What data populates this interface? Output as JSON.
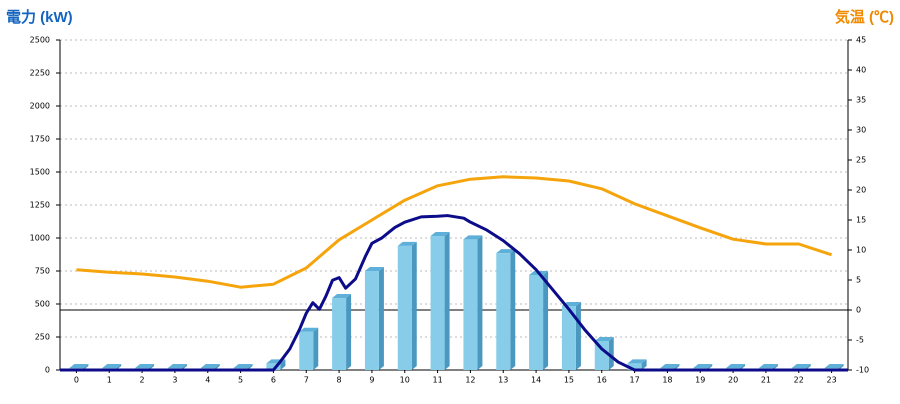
{
  "chart_data": {
    "type": "bar",
    "title": "電力 (kW)",
    "y2_title": "気温 (℃)",
    "categories": [
      "0",
      "1",
      "2",
      "3",
      "4",
      "5",
      "6",
      "7",
      "8",
      "9",
      "10",
      "11",
      "12",
      "13",
      "14",
      "15",
      "16",
      "17",
      "18",
      "19",
      "20",
      "21",
      "22",
      "23"
    ],
    "xlim": [
      -0.5,
      23.5
    ],
    "ylim": [
      0,
      2500
    ],
    "yticks": [
      0,
      250,
      500,
      750,
      1000,
      1250,
      1500,
      1750,
      2000,
      2250,
      2500
    ],
    "y2lim": [
      -10,
      45
    ],
    "y2ticks": [
      -10,
      -5,
      0,
      5,
      10,
      15,
      20,
      25,
      30,
      35,
      40,
      45
    ],
    "grid": true,
    "series": [
      {
        "type": "bar",
        "color": "#87cdea",
        "values": [
          15,
          15,
          15,
          15,
          15,
          15,
          50,
          290,
          545,
          750,
          940,
          1015,
          990,
          885,
          720,
          485,
          220,
          50,
          15,
          15,
          15,
          15,
          15,
          15
        ]
      },
      {
        "type": "line",
        "axis": "y2",
        "color": "#f5a40c",
        "values": [
          6.7,
          6.3,
          6,
          5.5,
          4.8,
          3.8,
          4.3,
          7,
          11.7,
          15,
          18.3,
          20.7,
          21.8,
          22.2,
          22,
          21.5,
          20.2,
          17.7,
          15.7,
          13.7,
          11.8,
          11,
          11,
          9.2
        ]
      },
      {
        "type": "line",
        "color": "#0c0c8a",
        "x": [
          -0.5,
          6,
          6.2,
          6.5,
          6.8,
          7,
          7.2,
          7.4,
          7.6,
          7.8,
          8,
          8.2,
          8.5,
          8.8,
          9,
          9.3,
          9.5,
          9.7,
          10,
          10.5,
          11,
          11.3,
          11.8,
          12,
          12.5,
          13,
          13.5,
          14,
          14.5,
          15,
          15.5,
          16,
          16.5,
          17,
          23.5
        ],
        "values": [
          0,
          0,
          60,
          160,
          310,
          430,
          510,
          460,
          560,
          680,
          700,
          620,
          690,
          860,
          960,
          1000,
          1040,
          1080,
          1120,
          1160,
          1165,
          1170,
          1150,
          1120,
          1060,
          980,
          880,
          760,
          610,
          460,
          300,
          160,
          60,
          0,
          0
        ]
      }
    ]
  }
}
